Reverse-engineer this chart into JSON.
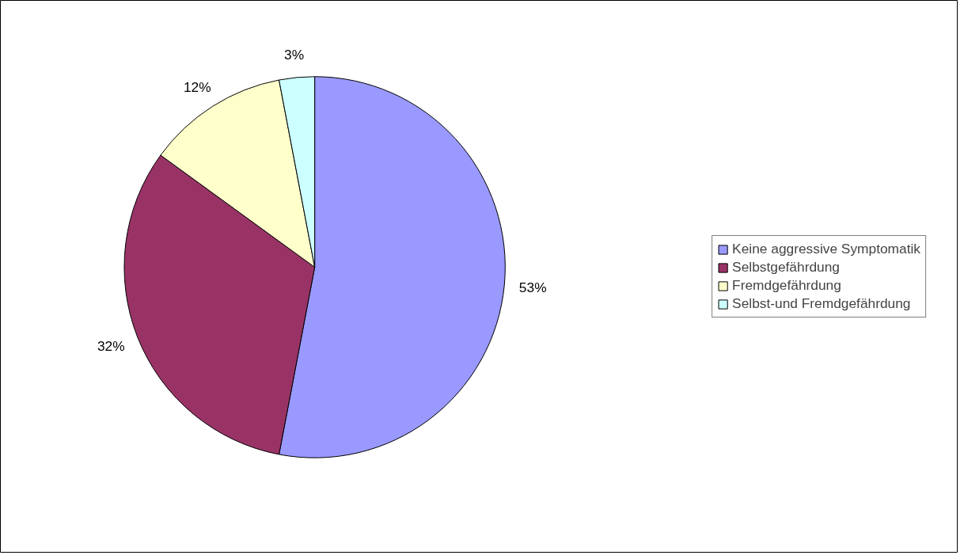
{
  "chart_data": {
    "type": "pie",
    "categories": [
      "Keine aggressive Symptomatik",
      "Selbstgefährdung",
      "Fremdgefährdung",
      "Selbst-und Fremdgefährdung"
    ],
    "values": [
      53,
      32,
      12,
      3
    ],
    "colors": [
      "#9999ff",
      "#993366",
      "#ffffcc",
      "#ccffff"
    ],
    "value_labels": [
      "53%",
      "32%",
      "12%",
      "3%"
    ],
    "legend": "right"
  }
}
